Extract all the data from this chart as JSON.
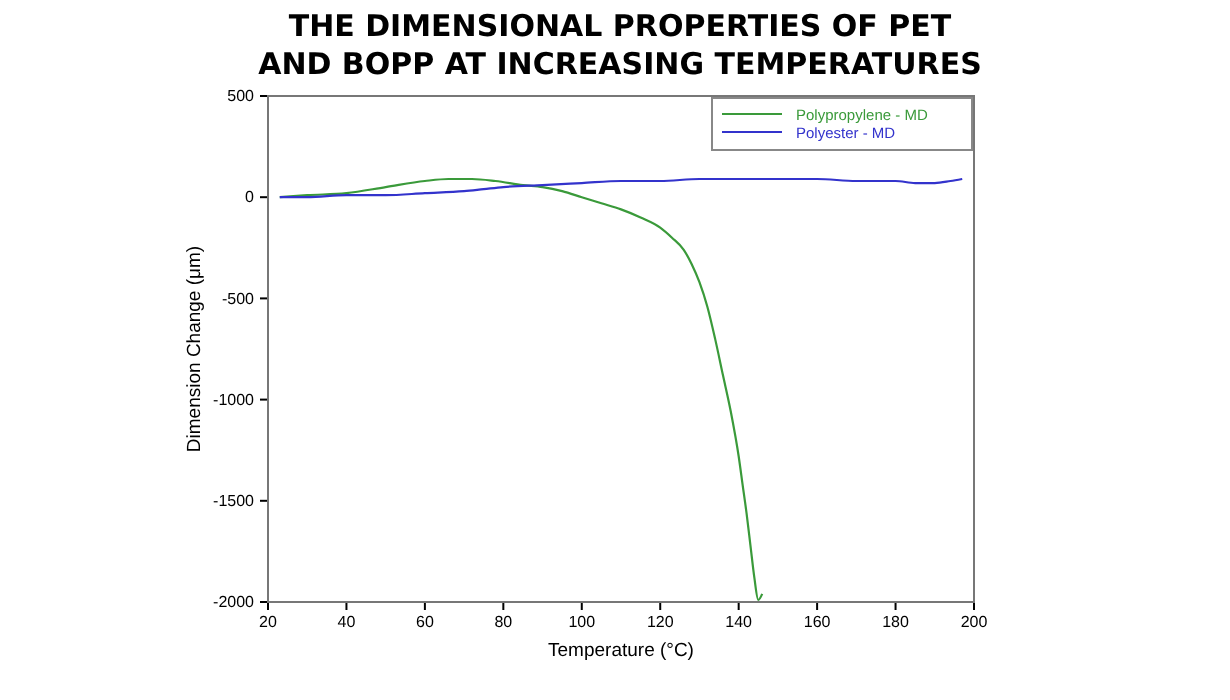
{
  "chart_data": {
    "type": "line",
    "title": "THE DIMENSIONAL PROPERTIES OF PET AND BOPP AT INCREASING TEMPERATURES",
    "xlabel": "Temperature (°C)",
    "ylabel": "Dimension Change (μm)",
    "xlim": [
      20,
      200
    ],
    "xticks": [
      20,
      40,
      60,
      80,
      100,
      120,
      140,
      160,
      180,
      200
    ],
    "ylim": [
      -2000,
      500
    ],
    "yticks": [
      -2000,
      -1500,
      -1000,
      -500,
      0,
      500
    ],
    "legend": "top right",
    "grid": false,
    "marker": "none",
    "line_style": "solid",
    "series": [
      {
        "name": "Polypropylene - MD",
        "color": "#3a9a3a",
        "x": [
          23,
          30,
          40,
          50,
          60,
          66,
          72,
          78,
          85,
          90,
          95,
          100,
          105,
          110,
          115,
          120,
          123,
          126,
          128,
          130,
          132,
          134,
          136,
          138,
          140,
          141,
          142,
          143,
          144,
          145,
          146
        ],
        "values": [
          0,
          10,
          20,
          50,
          80,
          90,
          90,
          80,
          60,
          50,
          30,
          0,
          -30,
          -60,
          -100,
          -150,
          -200,
          -260,
          -330,
          -420,
          -540,
          -700,
          -880,
          -1060,
          -1280,
          -1420,
          -1560,
          -1720,
          -1880,
          -1990,
          -1960
        ]
      },
      {
        "name": "Polyester - MD",
        "color": "#3333cc",
        "x": [
          23,
          30,
          40,
          50,
          60,
          70,
          75,
          80,
          90,
          100,
          110,
          120,
          130,
          140,
          150,
          160,
          170,
          180,
          185,
          190,
          194,
          197
        ],
        "values": [
          0,
          0,
          10,
          10,
          20,
          30,
          40,
          50,
          60,
          70,
          80,
          80,
          90,
          90,
          90,
          90,
          80,
          80,
          70,
          70,
          80,
          90
        ]
      }
    ]
  }
}
